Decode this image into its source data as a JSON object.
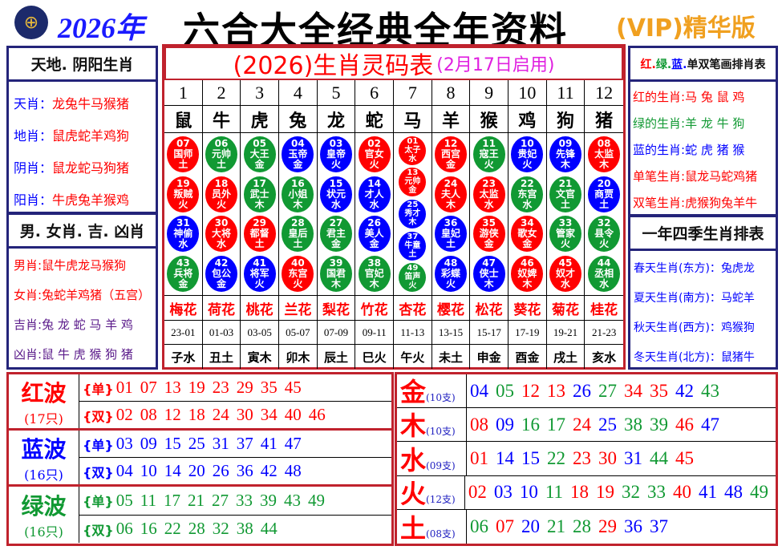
{
  "header": {
    "year": "2026年",
    "title": "六合大全经典全年资料",
    "edition": "(VIP)精华版"
  },
  "colors": {
    "red": "#ff0000",
    "blue": "#0000ff",
    "green": "#119933"
  },
  "waves_def": {
    "red": [
      "01",
      "02",
      "07",
      "08",
      "12",
      "13",
      "18",
      "19",
      "23",
      "24",
      "29",
      "30",
      "34",
      "35",
      "40",
      "45",
      "46"
    ],
    "blue": [
      "03",
      "04",
      "09",
      "10",
      "14",
      "15",
      "20",
      "25",
      "26",
      "31",
      "36",
      "37",
      "41",
      "42",
      "47",
      "48"
    ]
  },
  "left_top": {
    "title": "天地. 阴阳生肖",
    "rows": [
      {
        "label": "天肖：",
        "value": "龙兔牛马猴猪"
      },
      {
        "label": "地肖：",
        "value": "鼠虎蛇羊鸡狗"
      },
      {
        "label": "阴肖：",
        "value": "鼠龙蛇马狗猪"
      },
      {
        "label": "阳肖：",
        "value": "牛虎兔羊猴鸡"
      }
    ]
  },
  "left_bottom": {
    "title": "男. 女肖. 吉. 凶肖",
    "rows": [
      {
        "label": "男肖:",
        "value": "鼠牛虎龙马猴狗",
        "color": "#ff0000"
      },
      {
        "label": "女肖:",
        "value": "兔蛇羊鸡猪（五宫）",
        "color": "#ff0000"
      },
      {
        "label": "吉肖:",
        "value": "兔 龙 蛇 马 羊 鸡",
        "color": "#5a1a8a"
      },
      {
        "label": "凶肖:",
        "value": "鼠 牛 虎 猴 狗 猪",
        "color": "#5a1a8a"
      }
    ]
  },
  "center": {
    "title": "(2026)生肖灵码表",
    "subtitle": "(2月17日启用)",
    "columns": [
      {
        "num": "1",
        "zodiac": "鼠",
        "flower": "梅花",
        "time": "23-01",
        "branch": "子水",
        "balls": [
          {
            "n": "07",
            "name": "国师",
            "el": "土"
          },
          {
            "n": "19",
            "name": "叛贼",
            "el": "火"
          },
          {
            "n": "31",
            "name": "神偷",
            "el": "水"
          },
          {
            "n": "43",
            "name": "兵将",
            "el": "金"
          }
        ]
      },
      {
        "num": "2",
        "zodiac": "牛",
        "flower": "荷花",
        "time": "01-03",
        "branch": "丑土",
        "balls": [
          {
            "n": "06",
            "name": "元帅",
            "el": "土"
          },
          {
            "n": "18",
            "name": "员外",
            "el": "火"
          },
          {
            "n": "30",
            "name": "大将",
            "el": "水"
          },
          {
            "n": "42",
            "name": "包公",
            "el": "金"
          }
        ]
      },
      {
        "num": "3",
        "zodiac": "虎",
        "flower": "桃花",
        "time": "03-05",
        "branch": "寅木",
        "balls": [
          {
            "n": "05",
            "name": "大王",
            "el": "金"
          },
          {
            "n": "17",
            "name": "武士",
            "el": "木"
          },
          {
            "n": "29",
            "name": "都督",
            "el": "土"
          },
          {
            "n": "41",
            "name": "将军",
            "el": "火"
          }
        ]
      },
      {
        "num": "4",
        "zodiac": "兔",
        "flower": "兰花",
        "time": "05-07",
        "branch": "卯木",
        "balls": [
          {
            "n": "04",
            "name": "玉帝",
            "el": "金"
          },
          {
            "n": "16",
            "name": "小姐",
            "el": "木"
          },
          {
            "n": "28",
            "name": "皇后",
            "el": "土"
          },
          {
            "n": "40",
            "name": "东宫",
            "el": "火"
          }
        ]
      },
      {
        "num": "5",
        "zodiac": "龙",
        "flower": "梨花",
        "time": "07-09",
        "branch": "辰土",
        "balls": [
          {
            "n": "03",
            "name": "皇帝",
            "el": "火"
          },
          {
            "n": "15",
            "name": "状元",
            "el": "水"
          },
          {
            "n": "27",
            "name": "君主",
            "el": "金"
          },
          {
            "n": "39",
            "name": "国君",
            "el": "木"
          }
        ]
      },
      {
        "num": "6",
        "zodiac": "蛇",
        "flower": "竹花",
        "time": "09-11",
        "branch": "巳火",
        "balls": [
          {
            "n": "02",
            "name": "官女",
            "el": "火"
          },
          {
            "n": "14",
            "name": "才人",
            "el": "水"
          },
          {
            "n": "26",
            "name": "美人",
            "el": "金"
          },
          {
            "n": "38",
            "name": "官妃",
            "el": "木"
          }
        ]
      },
      {
        "num": "7",
        "zodiac": "马",
        "flower": "杏花",
        "time": "11-13",
        "branch": "午火",
        "balls": [
          {
            "n": "01",
            "name": "太子",
            "el": "水"
          },
          {
            "n": "13",
            "name": "元帅",
            "el": "金"
          },
          {
            "n": "25",
            "name": "秀才",
            "el": "木"
          },
          {
            "n": "37",
            "name": "牛童",
            "el": "土"
          },
          {
            "n": "49",
            "name": "笛声",
            "el": "火"
          }
        ]
      },
      {
        "num": "8",
        "zodiac": "羊",
        "flower": "樱花",
        "time": "13-15",
        "branch": "未土",
        "balls": [
          {
            "n": "12",
            "name": "西宫",
            "el": "金"
          },
          {
            "n": "24",
            "name": "夫人",
            "el": "木"
          },
          {
            "n": "36",
            "name": "皇妃",
            "el": "土"
          },
          {
            "n": "48",
            "name": "彩蝶",
            "el": "火"
          }
        ]
      },
      {
        "num": "9",
        "zodiac": "猴",
        "flower": "松花",
        "time": "15-17",
        "branch": "申金",
        "balls": [
          {
            "n": "11",
            "name": "寇王",
            "el": "火"
          },
          {
            "n": "23",
            "name": "太监",
            "el": "水"
          },
          {
            "n": "35",
            "name": "游侠",
            "el": "金"
          },
          {
            "n": "47",
            "name": "侠士",
            "el": "木"
          }
        ]
      },
      {
        "num": "10",
        "zodiac": "鸡",
        "flower": "葵花",
        "time": "17-19",
        "branch": "酉金",
        "balls": [
          {
            "n": "10",
            "name": "贵妃",
            "el": "火"
          },
          {
            "n": "22",
            "name": "东宫",
            "el": "水"
          },
          {
            "n": "34",
            "name": "歌女",
            "el": "金"
          },
          {
            "n": "46",
            "name": "奴婢",
            "el": "木"
          }
        ]
      },
      {
        "num": "11",
        "zodiac": "狗",
        "flower": "菊花",
        "time": "19-21",
        "branch": "戌土",
        "balls": [
          {
            "n": "09",
            "name": "先锋",
            "el": "木"
          },
          {
            "n": "21",
            "name": "文官",
            "el": "土"
          },
          {
            "n": "33",
            "name": "管家",
            "el": "火"
          },
          {
            "n": "45",
            "name": "奴才",
            "el": "水"
          }
        ]
      },
      {
        "num": "12",
        "zodiac": "猪",
        "flower": "桂花",
        "time": "21-23",
        "branch": "亥水",
        "balls": [
          {
            "n": "08",
            "name": "太监",
            "el": "木"
          },
          {
            "n": "20",
            "name": "商贾",
            "el": "土"
          },
          {
            "n": "32",
            "name": "县令",
            "el": "火"
          },
          {
            "n": "44",
            "name": "丞相",
            "el": "水"
          }
        ]
      }
    ]
  },
  "right_top": {
    "title_parts": [
      {
        "t": "红.",
        "color": "#ff0000"
      },
      {
        "t": "绿.",
        "color": "#119933"
      },
      {
        "t": "蓝.",
        "color": "#0000ff"
      },
      {
        "t": "单双笔画排肖表",
        "color": "#111111"
      }
    ],
    "rows": [
      {
        "label": "红的生肖:",
        "value": "马 兔 鼠 鸡",
        "color": "#ff0000"
      },
      {
        "label": "绿的生肖:",
        "value": "羊 龙 牛 狗",
        "color": "#119933"
      },
      {
        "label": "蓝的生肖:",
        "value": "蛇 虎 猪 猴",
        "color": "#0000ff"
      },
      {
        "label": "单笔生肖:",
        "value": "鼠龙马蛇鸡猪",
        "color": "#ff0000"
      },
      {
        "label": "双笔生肖:",
        "value": "虎猴狗兔羊牛",
        "color": "#ff0000"
      }
    ]
  },
  "right_bottom": {
    "title": "一年四季生肖排表",
    "rows": [
      {
        "label": "春天生肖(东方)：",
        "value": "兔虎龙"
      },
      {
        "label": "夏天生肖(南方)：",
        "value": "马蛇羊"
      },
      {
        "label": "秋天生肖(西方)：",
        "value": "鸡猴狗"
      },
      {
        "label": "冬天生肖(北方)：",
        "value": "鼠猪牛"
      }
    ]
  },
  "waves": [
    {
      "name": "红波",
      "count": "(17只)",
      "color": "#ff0000",
      "rows": [
        {
          "tag": "{单}",
          "nums": [
            "01",
            "07",
            "13",
            "19",
            "23",
            "29",
            "35",
            "45"
          ]
        },
        {
          "tag": "{双}",
          "nums": [
            "02",
            "08",
            "12",
            "18",
            "24",
            "30",
            "34",
            "40",
            "46"
          ]
        }
      ]
    },
    {
      "name": "蓝波",
      "count": "(16只)",
      "color": "#0000ff",
      "rows": [
        {
          "tag": "{单}",
          "nums": [
            "03",
            "09",
            "15",
            "25",
            "31",
            "37",
            "41",
            "47"
          ]
        },
        {
          "tag": "{双}",
          "nums": [
            "04",
            "10",
            "14",
            "20",
            "26",
            "36",
            "42",
            "48"
          ]
        }
      ]
    },
    {
      "name": "绿波",
      "count": "(16只)",
      "color": "#119933",
      "rows": [
        {
          "tag": "{单}",
          "nums": [
            "05",
            "11",
            "17",
            "21",
            "27",
            "33",
            "39",
            "43",
            "49"
          ]
        },
        {
          "tag": "{双}",
          "nums": [
            "06",
            "16",
            "22",
            "28",
            "32",
            "38",
            "44"
          ]
        }
      ]
    }
  ],
  "elements": [
    {
      "name": "金",
      "count": "(10支)",
      "nums": [
        "04",
        "05",
        "12",
        "13",
        "26",
        "27",
        "34",
        "35",
        "42",
        "43"
      ]
    },
    {
      "name": "木",
      "count": "(10支)",
      "nums": [
        "08",
        "09",
        "16",
        "17",
        "24",
        "25",
        "38",
        "39",
        "46",
        "47"
      ]
    },
    {
      "name": "水",
      "count": "(09支)",
      "nums": [
        "01",
        "14",
        "15",
        "22",
        "23",
        "30",
        "31",
        "44",
        "45"
      ]
    },
    {
      "name": "火",
      "count": "(12支)",
      "nums": [
        "02",
        "03",
        "10",
        "11",
        "18",
        "19",
        "32",
        "33",
        "40",
        "41",
        "48",
        "49"
      ]
    },
    {
      "name": "土",
      "count": "(08支)",
      "nums": [
        "06",
        "07",
        "20",
        "21",
        "28",
        "29",
        "36",
        "37"
      ]
    }
  ]
}
